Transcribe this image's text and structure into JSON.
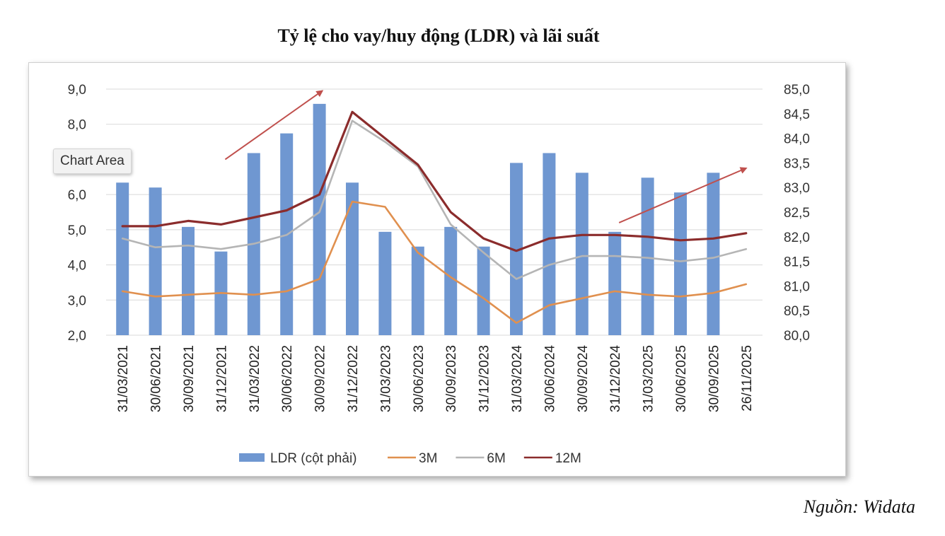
{
  "page": {
    "title": "Tỷ lệ cho vay/huy động (LDR) và lãi suất",
    "source": "Nguồn: Widata",
    "chart_area_tooltip": "Chart Area"
  },
  "chart_data": {
    "type": "bar",
    "title": "Tỷ lệ cho vay/huy động (LDR) và lãi suất",
    "categories": [
      "31/03/2021",
      "30/06/2021",
      "30/09/2021",
      "31/12/2021",
      "31/03/2022",
      "30/06/2022",
      "30/09/2022",
      "31/12/2022",
      "31/03/2023",
      "30/06/2023",
      "30/09/2023",
      "31/12/2023",
      "31/03/2024",
      "30/06/2024",
      "30/09/2024",
      "31/12/2024",
      "31/03/2025",
      "30/06/2025",
      "30/09/2025",
      "26/11/2025"
    ],
    "y_left": {
      "ylim": [
        2.0,
        9.0
      ],
      "ticks": [
        "2,0",
        "3,0",
        "4,0",
        "5,0",
        "6,0",
        "8,0",
        "9,0"
      ],
      "tick_values": [
        2,
        3,
        4,
        5,
        6,
        8,
        9
      ]
    },
    "y_right": {
      "ylim": [
        80.0,
        85.0
      ],
      "ticks": [
        "80,0",
        "80,5",
        "81,0",
        "81,5",
        "82,0",
        "82,5",
        "83,0",
        "83,5",
        "84,0",
        "84,5",
        "85,0"
      ],
      "tick_values": [
        80,
        80.5,
        81,
        81.5,
        82,
        82.5,
        83,
        83.5,
        84,
        84.5,
        85
      ]
    },
    "grid": true,
    "legend_position": "bottom",
    "series": [
      {
        "name": "LDR (cột phải)",
        "kind": "bar",
        "axis": "right",
        "color": "#6f97d1",
        "values": [
          83.1,
          83.0,
          82.2,
          81.7,
          83.7,
          84.1,
          84.7,
          83.1,
          82.1,
          81.8,
          82.2,
          81.8,
          83.5,
          83.7,
          83.3,
          82.1,
          83.2,
          82.9,
          83.3,
          null
        ]
      },
      {
        "name": "3M",
        "kind": "line",
        "axis": "left",
        "color": "#e0904f",
        "values": [
          3.25,
          3.1,
          3.15,
          3.2,
          3.15,
          3.25,
          3.6,
          5.8,
          5.65,
          4.35,
          3.65,
          3.05,
          2.35,
          2.85,
          3.05,
          3.25,
          3.15,
          3.1,
          3.2,
          3.45
        ]
      },
      {
        "name": "6M",
        "kind": "line",
        "axis": "left",
        "color": "#b5b5b5",
        "values": [
          4.75,
          4.5,
          4.55,
          4.45,
          4.6,
          4.85,
          5.5,
          8.1,
          7.5,
          6.8,
          5.15,
          4.35,
          3.6,
          4.0,
          4.25,
          4.25,
          4.2,
          4.1,
          4.2,
          4.45
        ]
      },
      {
        "name": "12M",
        "kind": "line",
        "axis": "left",
        "color": "#8b2c2c",
        "values": [
          5.1,
          5.1,
          5.25,
          5.15,
          5.35,
          5.55,
          6.0,
          8.35,
          7.6,
          6.85,
          5.5,
          4.75,
          4.4,
          4.75,
          4.85,
          4.85,
          4.8,
          4.7,
          4.75,
          4.9
        ]
      }
    ],
    "annotations": [
      {
        "type": "arrow",
        "color": "#c0504d",
        "from": {
          "category": "31/12/2021",
          "y_left": 7.0
        },
        "to": {
          "category": "30/09/2022",
          "y_left": 8.95
        }
      },
      {
        "type": "arrow",
        "color": "#c0504d",
        "from": {
          "category": "31/12/2024",
          "y_left": 5.2
        },
        "to": {
          "category": "26/11/2025",
          "y_left": 6.75
        }
      }
    ]
  }
}
